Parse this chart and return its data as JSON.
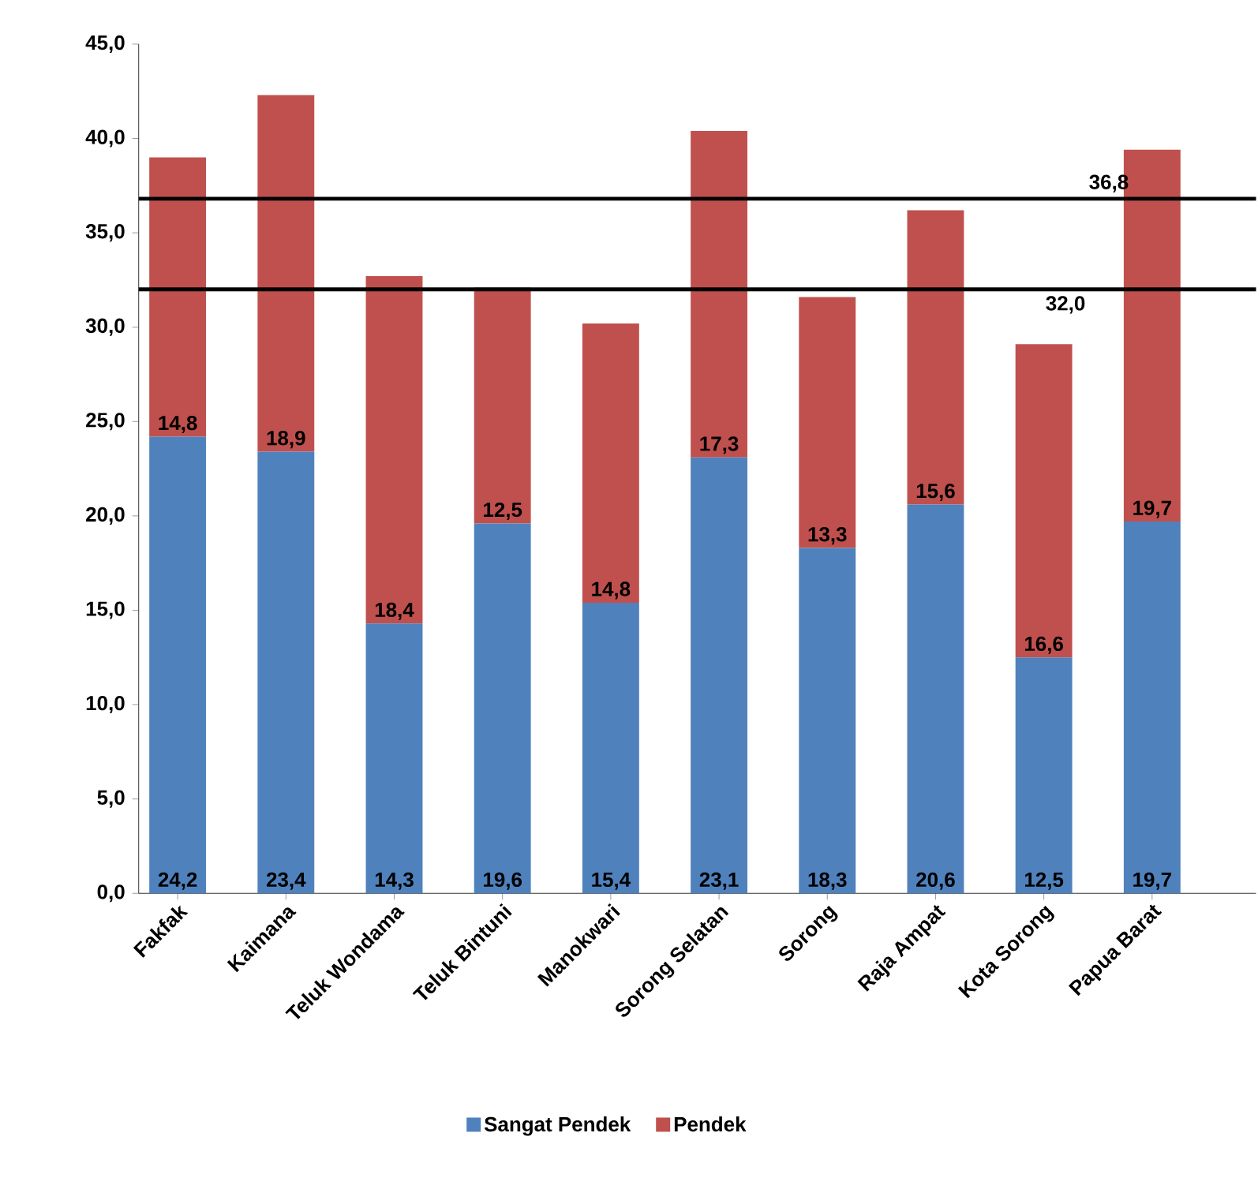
{
  "chart_data": {
    "type": "bar",
    "stacked": true,
    "legend": "bottom",
    "categories": [
      "Fakfak",
      "Kaimana",
      "Teluk Wondama",
      "Teluk Bintuni",
      "Manokwari",
      "Sorong Selatan",
      "Sorong",
      "Raja Ampat",
      "Kota Sorong",
      "Papua Barat"
    ],
    "series": [
      {
        "name": "Sangat Pendek",
        "color": "#4f81bd",
        "values": [
          24.2,
          23.4,
          14.3,
          19.6,
          15.4,
          23.1,
          18.3,
          20.6,
          12.5,
          19.7
        ],
        "value_labels": [
          "24,2",
          "23,4",
          "14,3",
          "19,6",
          "15,4",
          "23,1",
          "18,3",
          "20,6",
          "12,5",
          "19,7"
        ]
      },
      {
        "name": "Pendek",
        "color": "#c0504d",
        "values": [
          14.8,
          18.9,
          18.4,
          12.5,
          14.8,
          17.3,
          13.3,
          15.6,
          16.6,
          19.7
        ],
        "value_labels": [
          "14,8",
          "18,9",
          "18,4",
          "12,5",
          "14,8",
          "17,3",
          "13,3",
          "15,6",
          "16,6",
          "19,7"
        ]
      }
    ],
    "ylim": [
      0,
      45
    ],
    "yticks": [
      {
        "value": 0,
        "label": "0,0"
      },
      {
        "value": 5,
        "label": "5,0"
      },
      {
        "value": 10,
        "label": "10,0"
      },
      {
        "value": 15,
        "label": "15,0"
      },
      {
        "value": 20,
        "label": "20,0"
      },
      {
        "value": 25,
        "label": "25,0"
      },
      {
        "value": 30,
        "label": "30,0"
      },
      {
        "value": 35,
        "label": "35,0"
      },
      {
        "value": 40,
        "label": "40,0"
      },
      {
        "value": 45,
        "label": "45,0"
      }
    ],
    "ref_lines": [
      {
        "axis": "y",
        "value": 36.8,
        "label": "36,8",
        "color": "#000000"
      },
      {
        "axis": "y",
        "value": 32.0,
        "label": "32,0",
        "color": "#000000"
      }
    ]
  }
}
